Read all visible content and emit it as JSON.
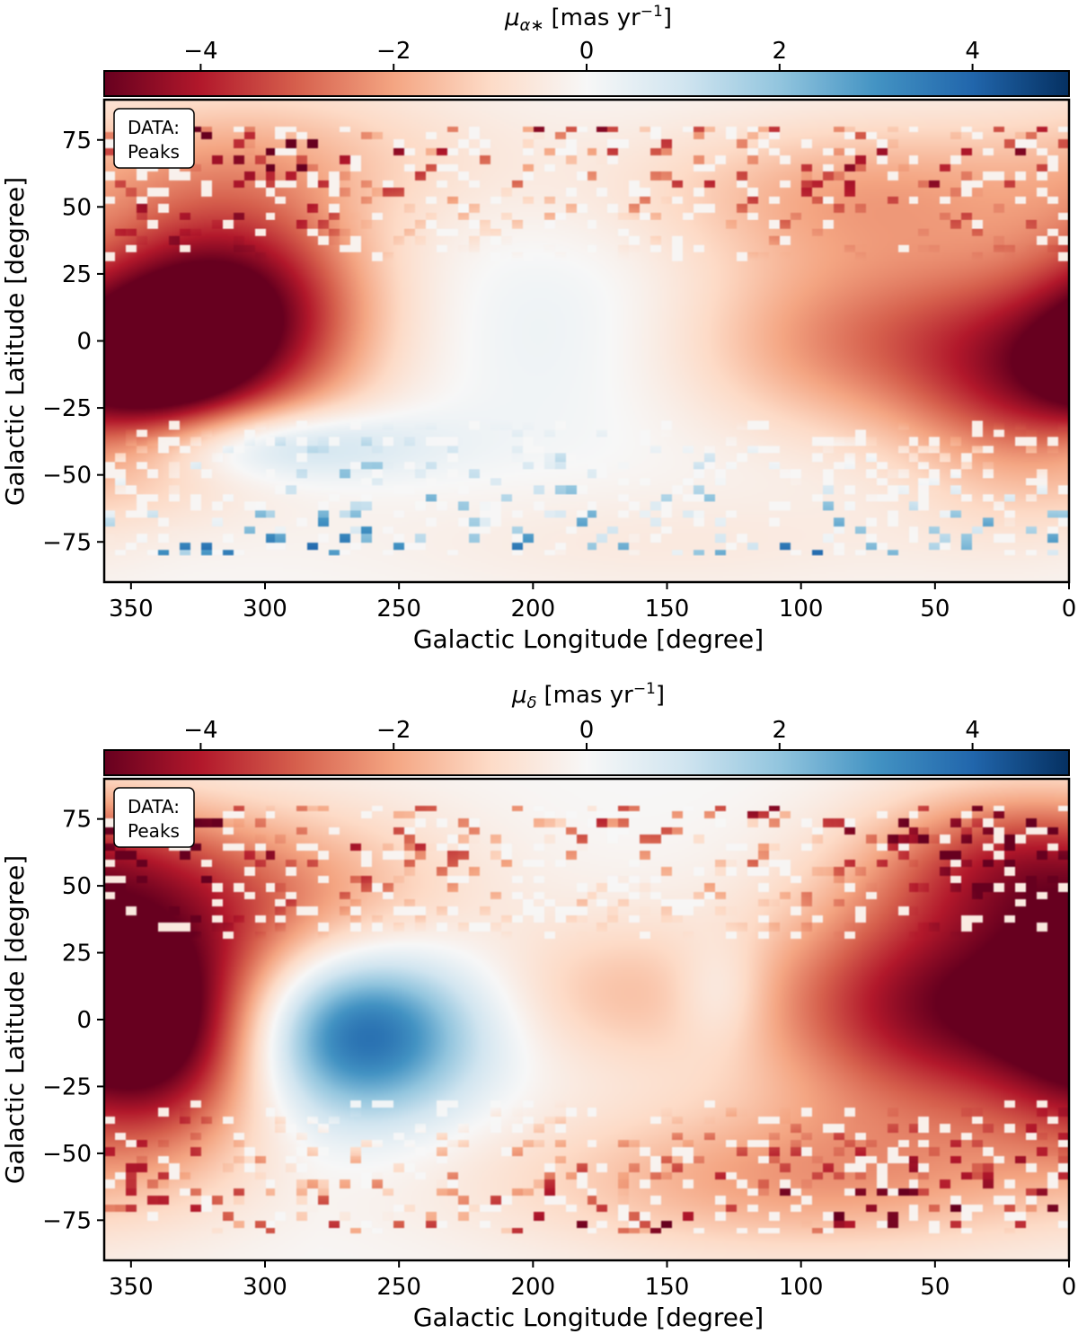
{
  "chart_data": [
    {
      "type": "heatmap",
      "panel": "top",
      "colorbar": {
        "label_main": "μ",
        "label_sub": "α∗",
        "label_unit": "[mas yr",
        "label_exp": "−1",
        "label_close": "]",
        "range": [
          -5,
          5
        ],
        "ticks": [
          -4,
          -2,
          0,
          2,
          4
        ],
        "tick_labels": [
          "−4",
          "−2",
          "0",
          "2",
          "4"
        ],
        "colormap": "RdBu"
      },
      "xlabel": "Galactic Longitude [degree]",
      "ylabel": "Galactic Latitude [degree]",
      "xlim": [
        360,
        0
      ],
      "ylim": [
        -90,
        90
      ],
      "xticks": [
        350,
        300,
        250,
        200,
        150,
        100,
        50,
        0
      ],
      "xtick_labels": [
        "350",
        "300",
        "250",
        "200",
        "150",
        "100",
        "50",
        "0"
      ],
      "yticks": [
        75,
        50,
        25,
        0,
        -25,
        -50,
        -75
      ],
      "ytick_labels": [
        "75",
        "50",
        "25",
        "0",
        "−25",
        "−50",
        "−75"
      ],
      "legend_lines": [
        "DATA:",
        "Peaks"
      ],
      "field_features": [
        {
          "l": 310,
          "b": 10,
          "value": -5.0,
          "sigma_l": 35,
          "sigma_b": 30
        },
        {
          "l": 305,
          "b": -38,
          "value": 2.2,
          "sigma_l": 40,
          "sigma_b": 10
        },
        {
          "l": 340,
          "b": -10,
          "value": -3.0,
          "sigma_l": 25,
          "sigma_b": 25
        },
        {
          "l": 70,
          "b": 0,
          "value": -2.6,
          "sigma_l": 55,
          "sigma_b": 25
        },
        {
          "l": 20,
          "b": -20,
          "value": -2.2,
          "sigma_l": 30,
          "sigma_b": 30
        },
        {
          "l": 175,
          "b": 5,
          "value": 0.5,
          "sigma_l": 45,
          "sigma_b": 30
        },
        {
          "l": 80,
          "b": 55,
          "value": -1.8,
          "sigma_l": 60,
          "sigma_b": 20
        },
        {
          "l": 300,
          "b": 70,
          "value": -1.3,
          "sigma_l": 60,
          "sigma_b": 20
        },
        {
          "l": 150,
          "b": -75,
          "value": -0.5,
          "sigma_l": 80,
          "sigma_b": 15
        }
      ]
    },
    {
      "type": "heatmap",
      "panel": "bottom",
      "colorbar": {
        "label_main": "μ",
        "label_sub": "δ",
        "label_unit": "[mas yr",
        "label_exp": "−1",
        "label_close": "]",
        "range": [
          -5,
          5
        ],
        "ticks": [
          -4,
          -2,
          0,
          2,
          4
        ],
        "tick_labels": [
          "−4",
          "−2",
          "0",
          "2",
          "4"
        ],
        "colormap": "RdBu"
      },
      "xlabel": "Galactic Longitude [degree]",
      "ylabel": "Galactic Latitude [degree]",
      "xlim": [
        360,
        0
      ],
      "ylim": [
        -90,
        90
      ],
      "xticks": [
        350,
        300,
        250,
        200,
        150,
        100,
        50,
        0
      ],
      "xtick_labels": [
        "350",
        "300",
        "250",
        "200",
        "150",
        "100",
        "50",
        "0"
      ],
      "yticks": [
        75,
        50,
        25,
        0,
        -25,
        -50,
        -75
      ],
      "ytick_labels": [
        "75",
        "50",
        "25",
        "0",
        "−25",
        "−50",
        "−75"
      ],
      "legend_lines": [
        "DATA:",
        "Peaks"
      ],
      "field_features": [
        {
          "l": 265,
          "b": -5,
          "value": 4.2,
          "sigma_l": 30,
          "sigma_b": 22
        },
        {
          "l": 340,
          "b": -5,
          "value": -4.5,
          "sigma_l": 30,
          "sigma_b": 30
        },
        {
          "l": 45,
          "b": 5,
          "value": -4.6,
          "sigma_l": 50,
          "sigma_b": 30
        },
        {
          "l": 100,
          "b": -60,
          "value": -2.0,
          "sigma_l": 80,
          "sigma_b": 20
        },
        {
          "l": 170,
          "b": 10,
          "value": -1.2,
          "sigma_l": 30,
          "sigma_b": 20
        },
        {
          "l": 130,
          "b": 10,
          "value": 1.0,
          "sigma_l": 12,
          "sigma_b": 15
        },
        {
          "l": 300,
          "b": 45,
          "value": -2.3,
          "sigma_l": 50,
          "sigma_b": 25
        },
        {
          "l": 20,
          "b": 60,
          "value": -2.8,
          "sigma_l": 40,
          "sigma_b": 20
        }
      ]
    }
  ]
}
